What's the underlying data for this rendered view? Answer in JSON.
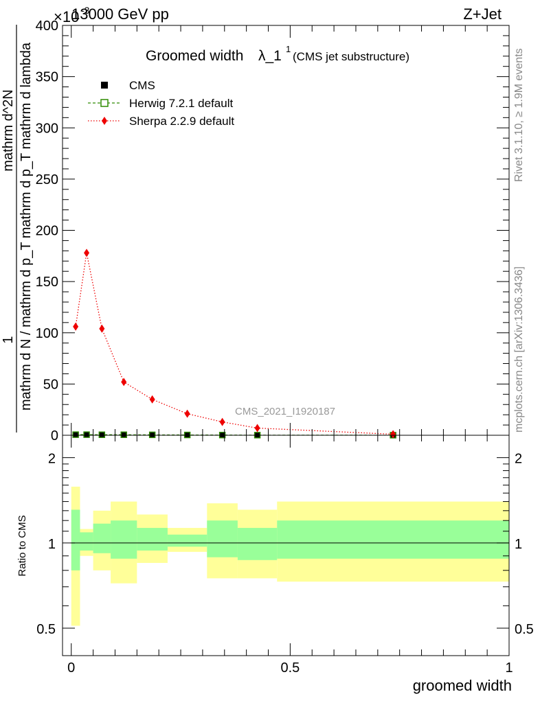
{
  "header": {
    "energy_label": "13000 GeV pp",
    "process_label": "Z+Jet",
    "exponent_label": "×10",
    "exponent_power": "-3"
  },
  "side_labels": {
    "rivet": "Rivet 3.1.10, ≥ 1.9M events",
    "mcplots": "mcplots.cern.ch [arXiv:1306.3436]"
  },
  "watermark": "CMS_2021_I1920187",
  "chart_data": [
    {
      "type": "line",
      "title": "Groomed width",
      "title_symbol": "λ_1",
      "title_superscript": "1",
      "subtitle": "(CMS jet substructure)",
      "xlabel": "",
      "ylabel_numerator": "1",
      "ylabel_denominator": "mathrm d N / mathrm d p_T mathrm d p_T mathrm d lambda",
      "ylabel_top": "mathrm d^2N",
      "xlim": [
        -0.02,
        1.0
      ],
      "ylim": [
        0,
        400
      ],
      "yticks": [
        0,
        50,
        100,
        150,
        200,
        250,
        300,
        350,
        400
      ],
      "ytick_labels": [
        "0",
        "50",
        "100",
        "150",
        "200",
        "250",
        "300",
        "350",
        "400"
      ],
      "legend": [
        {
          "name": "CMS",
          "marker": "square-filled",
          "color": "#000000"
        },
        {
          "name": "Herwig 7.2.1 default",
          "marker": "square-open",
          "color": "#2e8b00"
        },
        {
          "name": "Sherpa 2.2.9 default",
          "marker": "diamond",
          "color": "#ee0000"
        }
      ],
      "series": [
        {
          "name": "CMS",
          "x": [
            0.01,
            0.035,
            0.07,
            0.12,
            0.185,
            0.265,
            0.345,
            0.425,
            0.735
          ],
          "values": [
            0.6,
            0.6,
            0.5,
            0.5,
            0.4,
            0.3,
            0.2,
            0.1,
            0.05
          ]
        },
        {
          "name": "Herwig 7.2.1 default",
          "x": [
            0.01,
            0.035,
            0.07,
            0.12,
            0.185,
            0.265,
            0.345,
            0.425,
            0.735
          ],
          "values": [
            0.6,
            0.6,
            0.5,
            0.5,
            0.4,
            0.3,
            0.2,
            0.1,
            0.05
          ]
        },
        {
          "name": "Sherpa 2.2.9 default",
          "x": [
            0.01,
            0.035,
            0.07,
            0.12,
            0.185,
            0.265,
            0.345,
            0.425,
            0.735
          ],
          "values": [
            106,
            178,
            104,
            52,
            35,
            21,
            13,
            7,
            1
          ]
        }
      ]
    },
    {
      "type": "area",
      "title": "",
      "xlabel": "groomed width",
      "ylabel": "Ratio to CMS",
      "xlim": [
        -0.02,
        1.0
      ],
      "ylim": [
        0.4,
        2.4
      ],
      "yscale": "log",
      "yticks": [
        0.5,
        1,
        2
      ],
      "ytick_labels": [
        "0.5",
        "1",
        "2"
      ],
      "xticks": [
        0,
        0.5,
        1
      ],
      "xtick_labels": [
        "0",
        "0.5",
        "1"
      ],
      "bins": [
        0.0,
        0.02,
        0.05,
        0.09,
        0.15,
        0.22,
        0.31,
        0.38,
        0.47,
        1.0
      ],
      "band_outer_low": [
        0.51,
        0.9,
        0.8,
        0.72,
        0.85,
        0.93,
        0.75,
        0.75,
        0.73
      ],
      "band_outer_high": [
        1.58,
        1.12,
        1.3,
        1.4,
        1.26,
        1.13,
        1.38,
        1.31,
        1.4
      ],
      "band_inner_low": [
        0.8,
        0.94,
        0.92,
        0.88,
        0.94,
        0.97,
        0.89,
        0.87,
        0.88
      ],
      "band_inner_high": [
        1.31,
        1.09,
        1.17,
        1.2,
        1.13,
        1.07,
        1.2,
        1.13,
        1.2
      ],
      "reference": 1,
      "band_colors": {
        "outer": "#ffff99",
        "inner": "#99ff99"
      }
    }
  ]
}
